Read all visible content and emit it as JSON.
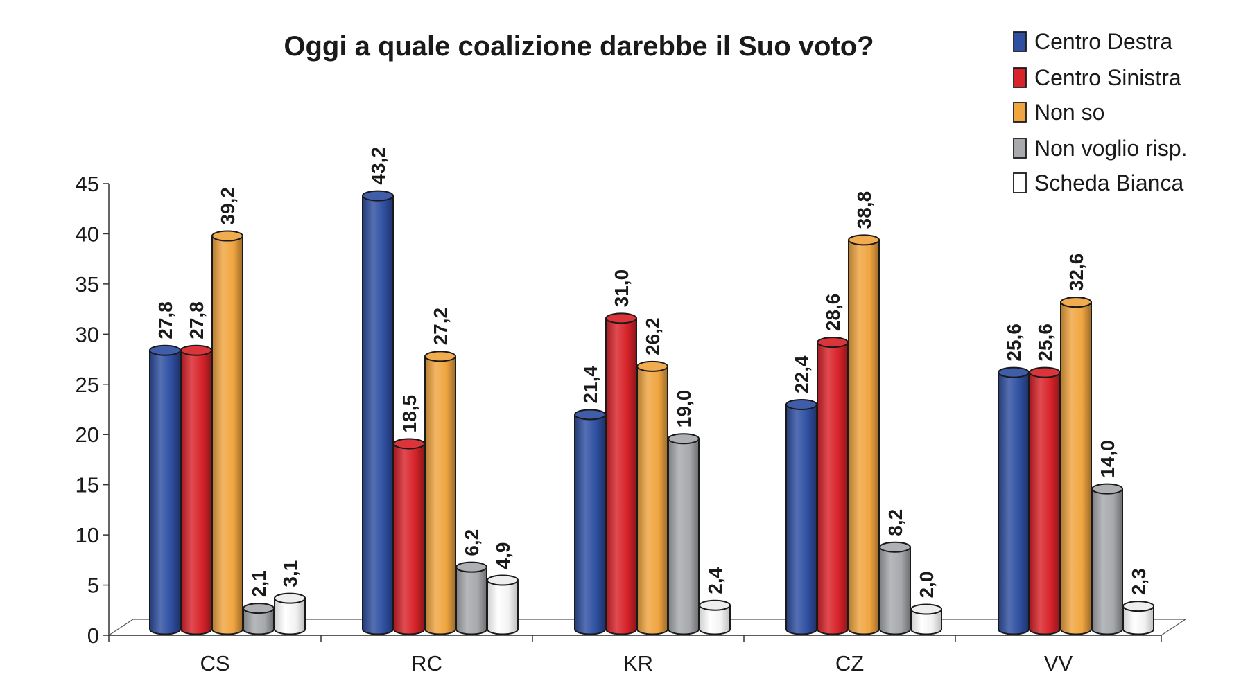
{
  "chart_data": {
    "type": "bar",
    "title": "Oggi a quale coalizione darebbe il Suo voto?",
    "xlabel": "",
    "ylabel": "",
    "ylim": [
      0,
      45
    ],
    "yticks": [
      "0",
      "5",
      "10",
      "15",
      "20",
      "25",
      "30",
      "35",
      "40",
      "45"
    ],
    "categories": [
      "CS",
      "RC",
      "KR",
      "CZ",
      "VV"
    ],
    "series": [
      {
        "name": "Centro Destra",
        "color": "#2f4fa1",
        "values": [
          27.8,
          43.2,
          21.4,
          22.4,
          25.6
        ],
        "labels": [
          "27,8",
          "43,2",
          "21,4",
          "22,4",
          "25,6"
        ]
      },
      {
        "name": "Centro Sinistra",
        "color": "#d8232a",
        "values": [
          27.8,
          18.5,
          31.0,
          28.6,
          25.6
        ],
        "labels": [
          "27,8",
          "18,5",
          "31,0",
          "28,6",
          "25,6"
        ]
      },
      {
        "name": "Non so",
        "color": "#f0a540",
        "values": [
          39.2,
          27.2,
          26.2,
          38.8,
          32.6
        ],
        "labels": [
          "39,2",
          "27,2",
          "26,2",
          "38,8",
          "32,6"
        ]
      },
      {
        "name": "Non voglio risp.",
        "color": "#a7a9ad",
        "values": [
          2.1,
          6.2,
          19.0,
          8.2,
          14.0
        ],
        "labels": [
          "2,1",
          "6,2",
          "19,0",
          "8,2",
          "14,0"
        ]
      },
      {
        "name": "Scheda Bianca",
        "color": "#ffffff",
        "values": [
          3.1,
          4.9,
          2.4,
          2.0,
          2.3
        ],
        "labels": [
          "3,1",
          "4,9",
          "2,4",
          "2,0",
          "2,3"
        ]
      }
    ],
    "grid": false,
    "legend": "top-right",
    "style": "3d-cylinder-bars"
  }
}
